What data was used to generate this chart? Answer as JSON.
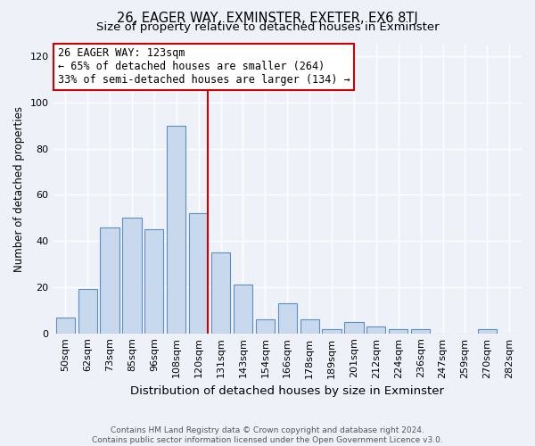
{
  "title": "26, EAGER WAY, EXMINSTER, EXETER, EX6 8TJ",
  "subtitle": "Size of property relative to detached houses in Exminster",
  "xlabel": "Distribution of detached houses by size in Exminster",
  "ylabel": "Number of detached properties",
  "bar_labels": [
    "50sqm",
    "62sqm",
    "73sqm",
    "85sqm",
    "96sqm",
    "108sqm",
    "120sqm",
    "131sqm",
    "143sqm",
    "154sqm",
    "166sqm",
    "178sqm",
    "189sqm",
    "201sqm",
    "212sqm",
    "224sqm",
    "236sqm",
    "247sqm",
    "259sqm",
    "270sqm",
    "282sqm"
  ],
  "bar_values": [
    7,
    19,
    46,
    50,
    45,
    90,
    52,
    35,
    21,
    6,
    13,
    6,
    2,
    5,
    3,
    2,
    2,
    0,
    0,
    2,
    0
  ],
  "bar_color": "#c8d9ee",
  "bar_edge_color": "#5b8ec4",
  "ylim": [
    0,
    125
  ],
  "yticks": [
    0,
    20,
    40,
    60,
    80,
    100,
    120
  ],
  "vline_color": "#cc0000",
  "annotation_title": "26 EAGER WAY: 123sqm",
  "annotation_line1": "← 65% of detached houses are smaller (264)",
  "annotation_line2": "33% of semi-detached houses are larger (134) →",
  "annotation_box_color": "#cc0000",
  "footer_line1": "Contains HM Land Registry data © Crown copyright and database right 2024.",
  "footer_line2": "Contains public sector information licensed under the Open Government Licence v3.0.",
  "background_color": "#eef2f8",
  "grid_color": "#ffffff",
  "title_fontsize": 10.5,
  "subtitle_fontsize": 9.5,
  "annotation_fontsize": 8.5,
  "ylabel_fontsize": 8.5,
  "xlabel_fontsize": 9.5,
  "tick_fontsize": 8,
  "footer_fontsize": 6.5
}
